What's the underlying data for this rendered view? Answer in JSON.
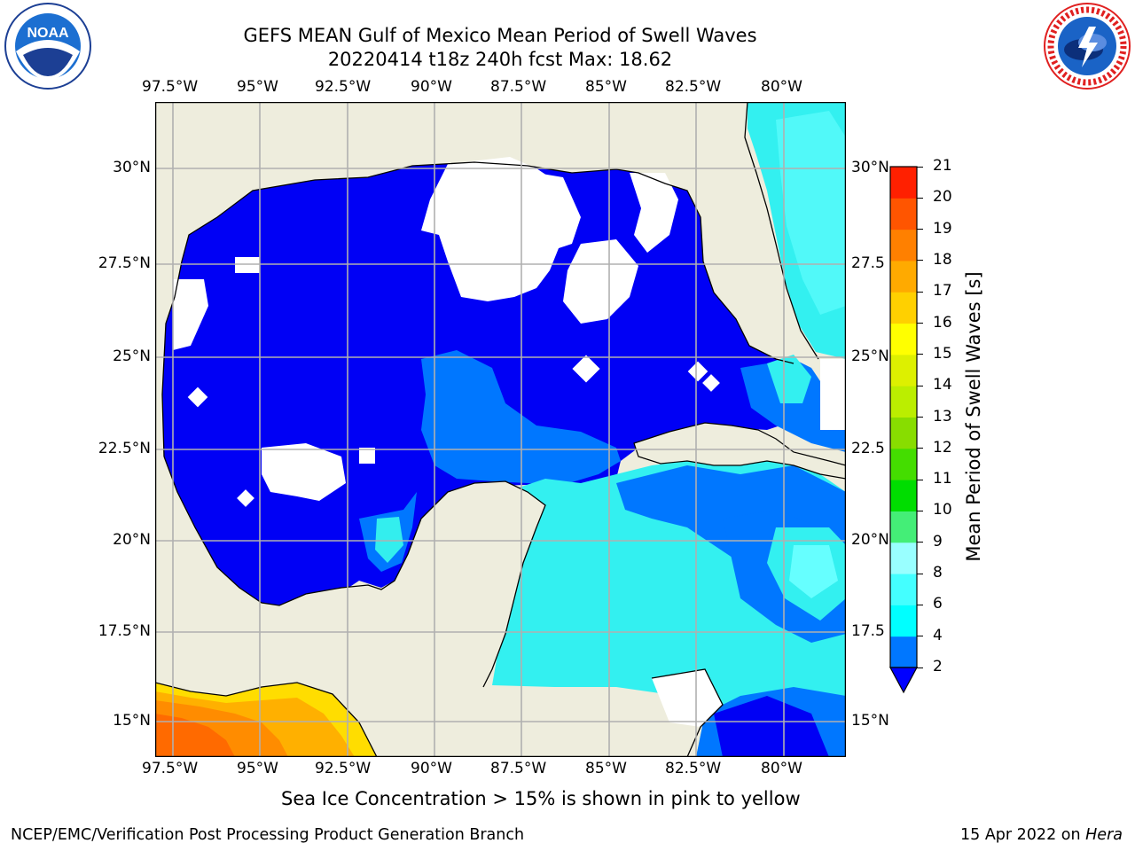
{
  "header": {
    "title_line1": "GEFS MEAN Gulf of Mexico Mean Period of Swell Waves",
    "title_line2": "20220414 t18z 240h fcst   Max: 18.62"
  },
  "logos": {
    "noaa_text": "NOAA",
    "nws_text": "NATIONAL WEATHER SERVICE"
  },
  "map": {
    "lon_labels": [
      "97.5°W",
      "95°W",
      "92.5°W",
      "90°W",
      "87.5°W",
      "85°W",
      "82.5°W",
      "80°W"
    ],
    "lat_labels_left": [
      "30°N",
      "27.5°N",
      "25°N",
      "22.5°N",
      "20°N",
      "17.5°N",
      "15°N"
    ],
    "lat_labels_right": [
      "30°N",
      "27.5",
      "25°N",
      "22.5",
      "20°N",
      "17.5",
      "15°N"
    ]
  },
  "colorbar": {
    "label": "Mean Period of Swell Waves [s]",
    "ticks": [
      "2",
      "4",
      "6",
      "8",
      "9",
      "10",
      "11",
      "12",
      "13",
      "14",
      "15",
      "16",
      "17",
      "18",
      "19",
      "20",
      "21"
    ],
    "colors": [
      "#0000ff",
      "#0077ff",
      "#00ffff",
      "#44ffff",
      "#99ffff",
      "#44ee77",
      "#00dd00",
      "#44dd00",
      "#88dd00",
      "#bbee00",
      "#ddf000",
      "#ffff00",
      "#ffd000",
      "#ffaa00",
      "#ff8000",
      "#ff5500",
      "#ff2000",
      "#ff0000"
    ],
    "colors_note": "bottom-to-top segment fills"
  },
  "notes": {
    "sea_ice": "Sea Ice Concentration > 15% is shown in pink to yellow"
  },
  "footer": {
    "left": "NCEP/EMC/Verification Post Processing Product Generation Branch",
    "right_date": "15 Apr 2022 on ",
    "right_host": "Hera"
  }
}
